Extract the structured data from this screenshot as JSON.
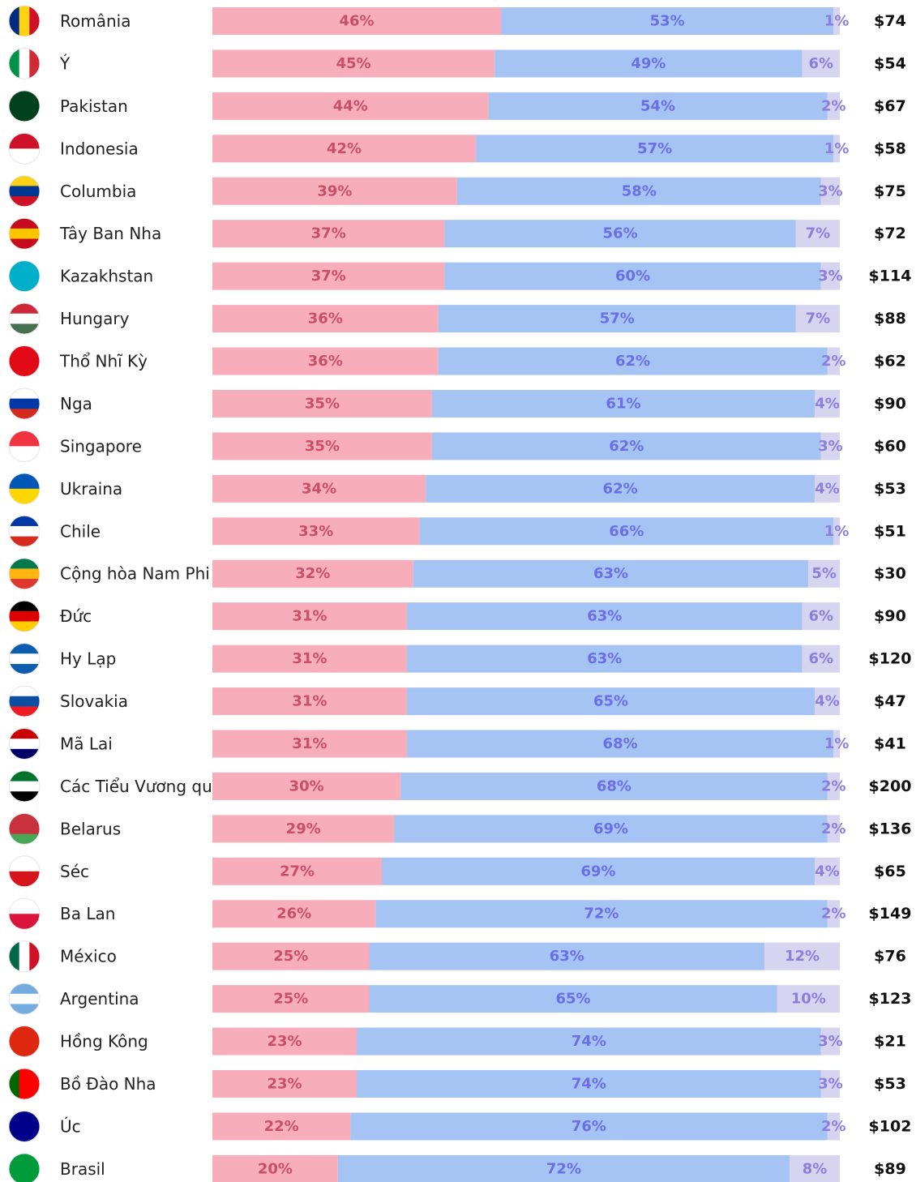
{
  "chart_data": {
    "type": "stacked-barh",
    "categories": [
      "România",
      "Ý",
      "Pakistan",
      "Indonesia",
      "Columbia",
      "Tây Ban Nha",
      "Kazakhstan",
      "Hungary",
      "Thổ Nhĩ Kỳ",
      "Nga",
      "Singapore",
      "Ukraina",
      "Chile",
      "Cộng hòa Nam Phi",
      "Đức",
      "Hy Lạp",
      "Slovakia",
      "Mã Lai",
      "Các Tiểu Vương qu",
      "Belarus",
      "Séc",
      "Ba Lan",
      "México",
      "Argentina",
      "Hồng Kông",
      "Bồ Đào Nha",
      "Úc",
      "Brasil"
    ],
    "xlim": [
      0,
      100
    ],
    "series": [
      {
        "color": "#f7aeba",
        "label_color": "#c94f68",
        "values": [
          46,
          45,
          44,
          42,
          39,
          37,
          37,
          36,
          36,
          35,
          35,
          34,
          33,
          32,
          31,
          31,
          31,
          31,
          30,
          29,
          27,
          26,
          25,
          25,
          23,
          23,
          22,
          20
        ],
        "value_labels": [
          "46%",
          "45%",
          "44%",
          "42%",
          "39%",
          "37%",
          "37%",
          "36%",
          "36%",
          "35%",
          "35%",
          "34%",
          "33%",
          "32%",
          "31%",
          "31%",
          "31%",
          "31%",
          "30%",
          "29%",
          "27%",
          "26%",
          "25%",
          "25%",
          "23%",
          "23%",
          "22%",
          "20%"
        ]
      },
      {
        "color": "#a5c3f3",
        "label_color": "#6b6fe6",
        "values": [
          53,
          49,
          54,
          57,
          58,
          56,
          60,
          57,
          62,
          61,
          62,
          62,
          66,
          63,
          63,
          63,
          65,
          68,
          68,
          69,
          69,
          72,
          63,
          65,
          74,
          74,
          76,
          72
        ],
        "value_labels": [
          "53%",
          "49%",
          "54%",
          "57%",
          "58%",
          "56%",
          "60%",
          "57%",
          "62%",
          "61%",
          "62%",
          "62%",
          "66%",
          "63%",
          "63%",
          "63%",
          "65%",
          "68%",
          "68%",
          "69%",
          "69%",
          "72%",
          "63%",
          "65%",
          "74%",
          "74%",
          "76%",
          "72%"
        ]
      },
      {
        "color": "#d6d4ef",
        "label_color": "#8a7fdc",
        "values": [
          1,
          6,
          2,
          1,
          3,
          7,
          3,
          7,
          2,
          4,
          3,
          4,
          1,
          5,
          6,
          6,
          4,
          1,
          2,
          2,
          4,
          2,
          12,
          10,
          3,
          3,
          2,
          8
        ],
        "value_labels": [
          "1%",
          "6%",
          "2%",
          "1%",
          "3%",
          "7%",
          "3%",
          "7%",
          "2%",
          "4%",
          "3%",
          "4%",
          "1%",
          "5%",
          "6%",
          "6%",
          "4%",
          "1%",
          "2%",
          "2%",
          "4%",
          "2%",
          "12%",
          "10%",
          "3%",
          "3%",
          "2%",
          "8%"
        ]
      }
    ],
    "prices": {
      "values": [
        74,
        54,
        67,
        58,
        75,
        72,
        114,
        88,
        62,
        90,
        60,
        53,
        51,
        30,
        90,
        120,
        47,
        41,
        200,
        136,
        65,
        149,
        76,
        123,
        21,
        53,
        102,
        89
      ],
      "value_labels": [
        "$74",
        "$54",
        "$67",
        "$58",
        "$75",
        "$72",
        "$114",
        "$88",
        "$62",
        "$90",
        "$60",
        "$53",
        "$51",
        "$30",
        "$90",
        "$120",
        "$47",
        "$41",
        "$200",
        "$136",
        "$65",
        "$149",
        "$76",
        "$123",
        "$21",
        "$53",
        "$102",
        "$89"
      ]
    }
  }
}
